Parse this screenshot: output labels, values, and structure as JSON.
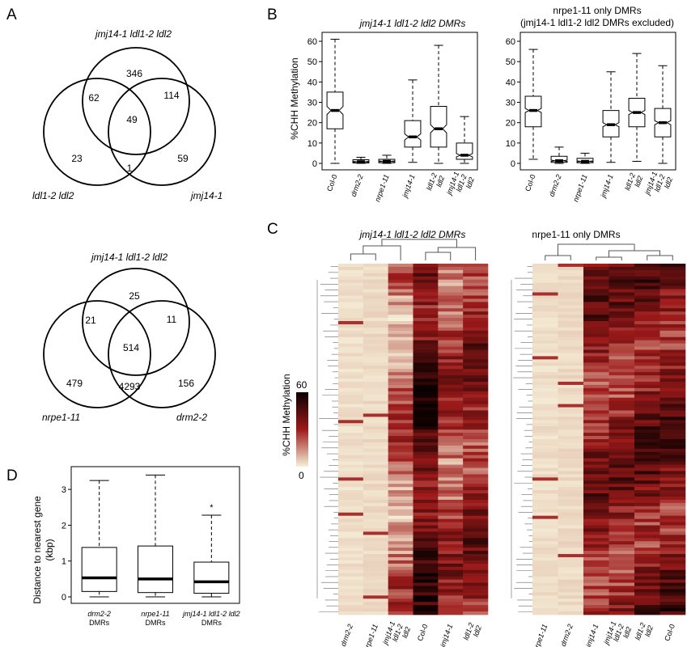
{
  "panels": {
    "A": {
      "letter": "A",
      "venn1": {
        "labels": {
          "top": "jmj14-1 ldl1-2 ldl2",
          "left": "ldl1-2 ldl2",
          "right": "jmj14-1"
        },
        "counts": {
          "top_only": "346",
          "top_left": "62",
          "top_right": "114",
          "center": "49",
          "left_only": "23",
          "left_right": "1",
          "right_only": "59"
        }
      },
      "venn2": {
        "labels": {
          "top": "jmj14-1 ldl1-2 ldl2",
          "left": "nrpe1-11",
          "right": "drm2-2"
        },
        "counts": {
          "top_only": "25",
          "top_left": "21",
          "top_right": "11",
          "center": "514",
          "left_only": "479",
          "left_right": "4293",
          "right_only": "156"
        }
      }
    },
    "B": {
      "letter": "B",
      "ylabel": "%CHH Methylation",
      "left_title": "jmj14-1 ldl1-2 ldl2 DMRs",
      "right_title_line1": "nrpe1-11 only DMRs",
      "right_title_line2": "(jmj14-1 ldl1-2 ldl2 DMRs excluded)"
    },
    "C": {
      "letter": "C",
      "left_title": "jmj14-1 ldl1-2 ldl2 DMRs",
      "right_title": "nrpe1-11 only DMRs",
      "colorbar_label": "%CHH Methylation",
      "colorbar_max": "60",
      "colorbar_min": "0",
      "colors": {
        "low": "#f6f0d8",
        "mid": "#9e1a1a",
        "high": "#0a0000"
      },
      "left_columns": [
        {
          "label": "drm2-2",
          "lines": [
            "drm2-2"
          ],
          "level": 0.04
        },
        {
          "label": "nrpe1-11",
          "lines": [
            "nrpe1-11"
          ],
          "level": 0.05
        },
        {
          "label": "jmj14-1 ldl1-2 ldl2",
          "lines": [
            "jmj14-1",
            "ldl1-2",
            "ldl2"
          ],
          "level": 0.3
        },
        {
          "label": "Col-0",
          "lines": [
            "Col-0"
          ],
          "level": 0.72
        },
        {
          "label": "jmj14-1",
          "lines": [
            "jmj14-1"
          ],
          "level": 0.42
        },
        {
          "label": "ldl1-2 ldl2",
          "lines": [
            "ldl1-2",
            "ldl2"
          ],
          "level": 0.55
        }
      ],
      "right_columns": [
        {
          "label": "nrpe1-11",
          "lines": [
            "nrpe1-11"
          ],
          "level": 0.04
        },
        {
          "label": "drm2-2",
          "lines": [
            "drm2-2"
          ],
          "level": 0.05
        },
        {
          "label": "jmj14-1",
          "lines": [
            "jmj14-1"
          ],
          "level": 0.55
        },
        {
          "label": "jmj14-1 ldl1-2 ldl2",
          "lines": [
            "jmj14-1",
            "ldl1-2",
            "ldl2"
          ],
          "level": 0.55
        },
        {
          "label": "ldl1-2 ldl2",
          "lines": [
            "ldl1-2",
            "ldl2"
          ],
          "level": 0.62
        },
        {
          "label": "Col-0",
          "lines": [
            "Col-0"
          ],
          "level": 0.62
        }
      ]
    },
    "D": {
      "letter": "D",
      "ylabel_line1": "Distance to nearest gene",
      "ylabel_line2": "(kbp)",
      "outlier_mark": "*"
    }
  },
  "chart_data": [
    {
      "type": "box",
      "panel": "B-left",
      "title": "jmj14-1 ldl1-2 ldl2 DMRs",
      "ylabel": "%CHH Methylation",
      "ylim": [
        0,
        62
      ],
      "yticks": [
        0,
        10,
        20,
        30,
        40,
        50,
        60
      ],
      "categories": [
        {
          "label": "Col-0",
          "lines": [
            "Col-0"
          ],
          "italic": false
        },
        {
          "label": "drm2-2",
          "lines": [
            "drm2-2"
          ],
          "italic": true
        },
        {
          "label": "nrpe1-11",
          "lines": [
            "nrpe1-11"
          ],
          "italic": true
        },
        {
          "label": "jmj14-1",
          "lines": [
            "jmj14-1"
          ],
          "italic": true
        },
        {
          "label": "ldl1-2 ldl2",
          "lines": [
            "ldl1-2",
            "ldl2"
          ],
          "italic": true
        },
        {
          "label": "jmj14-1 ldl1-2 ldl2",
          "lines": [
            "jmj14-1",
            "ldl1-2",
            "ldl2"
          ],
          "italic": true
        }
      ],
      "boxes": [
        {
          "min": 0,
          "q1": 17,
          "median": 26,
          "q3": 35,
          "max": 61,
          "notch": [
            24,
            28
          ]
        },
        {
          "min": 0,
          "q1": 0.2,
          "median": 0.8,
          "q3": 1.8,
          "max": 3,
          "notch": [
            0.6,
            1.0
          ]
        },
        {
          "min": 0,
          "q1": 0.3,
          "median": 1.0,
          "q3": 2.0,
          "max": 4,
          "notch": [
            0.8,
            1.2
          ]
        },
        {
          "min": 0.5,
          "q1": 8,
          "median": 13,
          "q3": 21,
          "max": 41,
          "notch": [
            11.5,
            14.5
          ]
        },
        {
          "min": 0,
          "q1": 8,
          "median": 17,
          "q3": 28,
          "max": 58,
          "notch": [
            15,
            19
          ]
        },
        {
          "min": 0,
          "q1": 2,
          "median": 4,
          "q3": 10,
          "max": 23,
          "notch": [
            3.2,
            4.8
          ]
        }
      ]
    },
    {
      "type": "box",
      "panel": "B-right",
      "title": "nrpe1-11 only DMRs (jmj14-1 ldl1-2 ldl2 DMRs excluded)",
      "ylim": [
        0,
        62
      ],
      "yticks": [
        0,
        10,
        20,
        30,
        40,
        50,
        60
      ],
      "categories": [
        {
          "label": "Col-0",
          "lines": [
            "Col-0"
          ],
          "italic": false
        },
        {
          "label": "drm2-2",
          "lines": [
            "drm2-2"
          ],
          "italic": true
        },
        {
          "label": "nrpe1-11",
          "lines": [
            "nrpe1-11"
          ],
          "italic": true
        },
        {
          "label": "jmj14-1",
          "lines": [
            "jmj14-1"
          ],
          "italic": true
        },
        {
          "label": "ldl1-2 ldl2",
          "lines": [
            "ldl1-2",
            "ldl2"
          ],
          "italic": true
        },
        {
          "label": "jmj14-1 ldl1-2 ldl2",
          "lines": [
            "jmj14-1",
            "ldl1-2",
            "ldl2"
          ],
          "italic": true
        }
      ],
      "boxes": [
        {
          "min": 2,
          "q1": 18,
          "median": 26,
          "q3": 33,
          "max": 56,
          "notch": [
            25,
            27
          ]
        },
        {
          "min": 0,
          "q1": 0.5,
          "median": 1.3,
          "q3": 3.5,
          "max": 8,
          "notch": [
            1.0,
            1.6
          ]
        },
        {
          "min": 0,
          "q1": 0.3,
          "median": 1.0,
          "q3": 2.5,
          "max": 5,
          "notch": [
            0.8,
            1.2
          ]
        },
        {
          "min": 0.5,
          "q1": 13,
          "median": 19,
          "q3": 26,
          "max": 45,
          "notch": [
            18,
            20
          ]
        },
        {
          "min": 1,
          "q1": 18,
          "median": 25,
          "q3": 32,
          "max": 54,
          "notch": [
            24,
            26
          ]
        },
        {
          "min": 0,
          "q1": 13,
          "median": 20,
          "q3": 27,
          "max": 48,
          "notch": [
            19,
            21
          ]
        }
      ]
    },
    {
      "type": "box",
      "panel": "D",
      "ylabel": "Distance to nearest gene (kbp)",
      "ylim": [
        0,
        3.5
      ],
      "yticks": [
        0,
        1,
        2,
        3
      ],
      "categories": [
        {
          "label": "drm2-2 DMRs",
          "lines": [
            "drm2-2",
            "DMRs"
          ],
          "italic_first": true
        },
        {
          "label": "nrpe1-11 DMRs",
          "lines": [
            "nrpe1-11",
            "DMRs"
          ],
          "italic_first": true
        },
        {
          "label": "jmj14-1 ldl1-2 ldl2 DMRs",
          "lines": [
            "jmj14-1 ldl1-2 ldl2",
            "DMRs"
          ],
          "italic_first": true
        }
      ],
      "boxes": [
        {
          "min": 0.0,
          "q1": 0.15,
          "median": 0.53,
          "q3": 1.38,
          "max": 3.25
        },
        {
          "min": 0.0,
          "q1": 0.12,
          "median": 0.5,
          "q3": 1.42,
          "max": 3.4
        },
        {
          "min": 0.0,
          "q1": 0.1,
          "median": 0.42,
          "q3": 0.97,
          "max": 2.28,
          "outlier": 2.55
        }
      ]
    }
  ]
}
